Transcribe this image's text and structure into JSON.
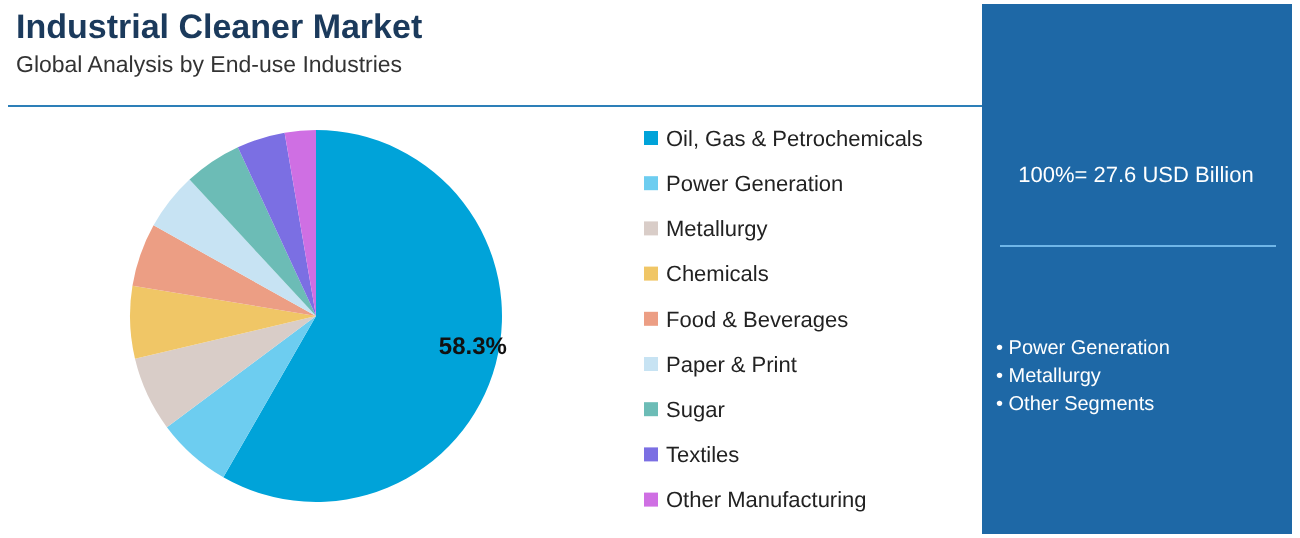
{
  "chart_data": {
    "type": "pie",
    "title": "Industrial Cleaner Market",
    "subtitle": "Global Analysis by End-use Industries",
    "categories": [
      "Oil, Gas & Petrochemicals",
      "Power Generation",
      "Metallurgy",
      "Chemicals",
      "Food & Beverages",
      "Paper & Print",
      "Sugar",
      "Textiles",
      "Other Manufacturing"
    ],
    "values": [
      58.3,
      6.5,
      6.5,
      6.3,
      5.5,
      5,
      5,
      4.2,
      2.7
    ],
    "colors": [
      "#00a3d9",
      "#6dcdf0",
      "#d9cdc8",
      "#f0c666",
      "#ec9e84",
      "#c7e3f3",
      "#6cbcb6",
      "#7b6fe3",
      "#cf6fe3"
    ],
    "value_labels": [
      "58.3%",
      null,
      null,
      null,
      null,
      null,
      null,
      null,
      null
    ],
    "legend": "right",
    "annotations": [
      "100%= 27.6 USD Billion",
      "• Power Generation",
      "• Metallurgy",
      "• Other Segments"
    ]
  }
}
